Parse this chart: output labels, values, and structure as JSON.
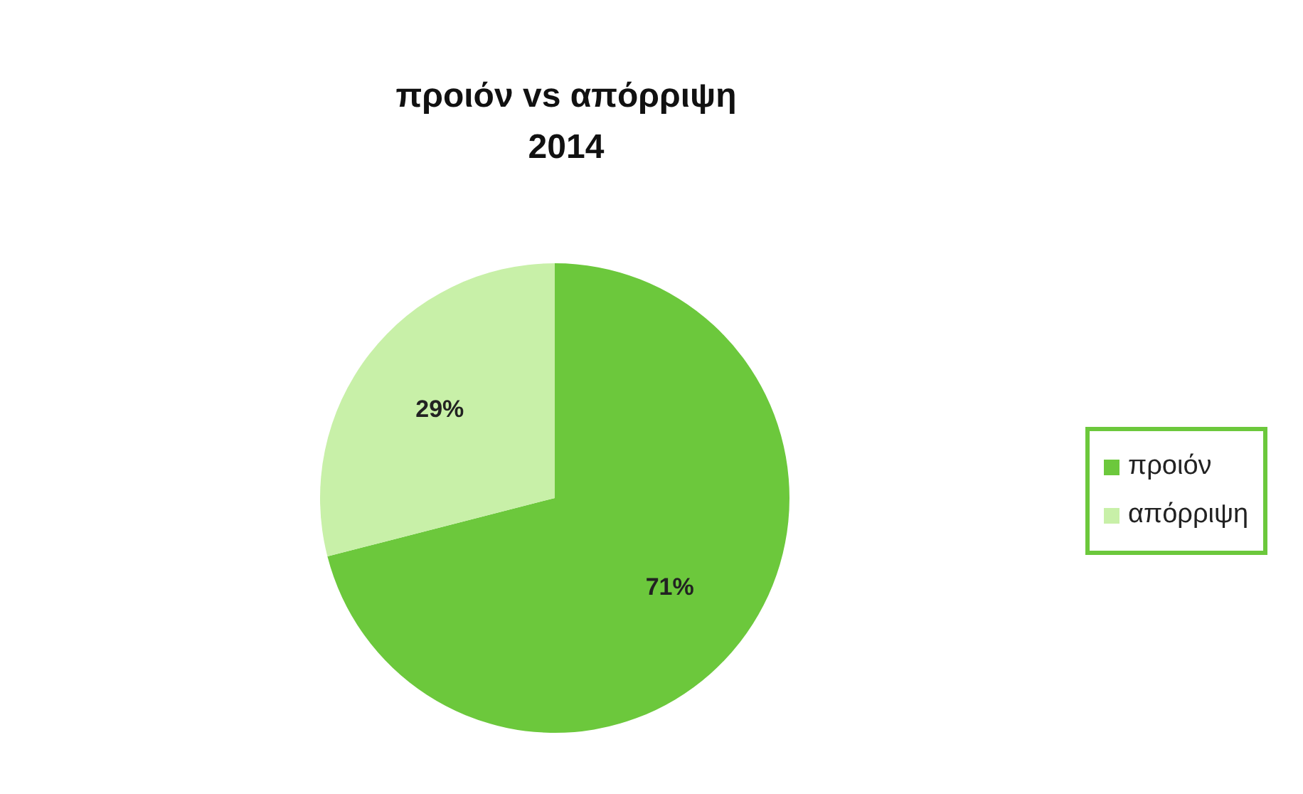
{
  "chart_data": {
    "type": "pie",
    "title": "προιόν vs απόρριψη\n2014",
    "categories": [
      "προιόν",
      "απόρριψη"
    ],
    "values": [
      71,
      29
    ],
    "colors": [
      "#6cc83c",
      "#c8f0a8"
    ],
    "value_labels": [
      "71%",
      "29%"
    ],
    "legend": "right"
  }
}
